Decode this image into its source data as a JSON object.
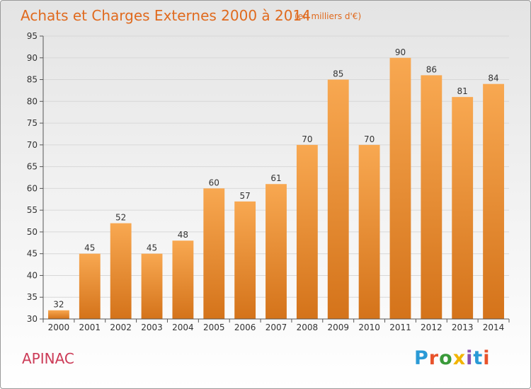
{
  "commune": "APINAC",
  "logo": {
    "text": "Proxiti",
    "colors": [
      "#2a9ad6",
      "#e8532b",
      "#3a9a3a",
      "#f2b400",
      "#8a4fb0",
      "#2a9ad6",
      "#e8532b"
    ]
  },
  "colors": {
    "bar_top": "#f8a851",
    "bar_bottom": "#d4731a",
    "title": "#e06a1e",
    "grid": "#d8d8d8",
    "axis": "#555555"
  },
  "chart_data": {
    "type": "bar",
    "title": "Achats et Charges Externes 2000 à 2014",
    "subtitle": "(en milliers d'€)",
    "categories": [
      "2000",
      "2001",
      "2002",
      "2003",
      "2004",
      "2005",
      "2006",
      "2007",
      "2008",
      "2009",
      "2010",
      "2011",
      "2012",
      "2013",
      "2014"
    ],
    "values": [
      32,
      45,
      52,
      45,
      48,
      60,
      57,
      61,
      70,
      85,
      70,
      90,
      86,
      81,
      84
    ],
    "xlabel": "",
    "ylabel": "",
    "ylim": [
      30,
      95
    ],
    "yticks": [
      30,
      35,
      40,
      45,
      50,
      55,
      60,
      65,
      70,
      75,
      80,
      85,
      90,
      95
    ],
    "grid": true,
    "legend": "none"
  }
}
